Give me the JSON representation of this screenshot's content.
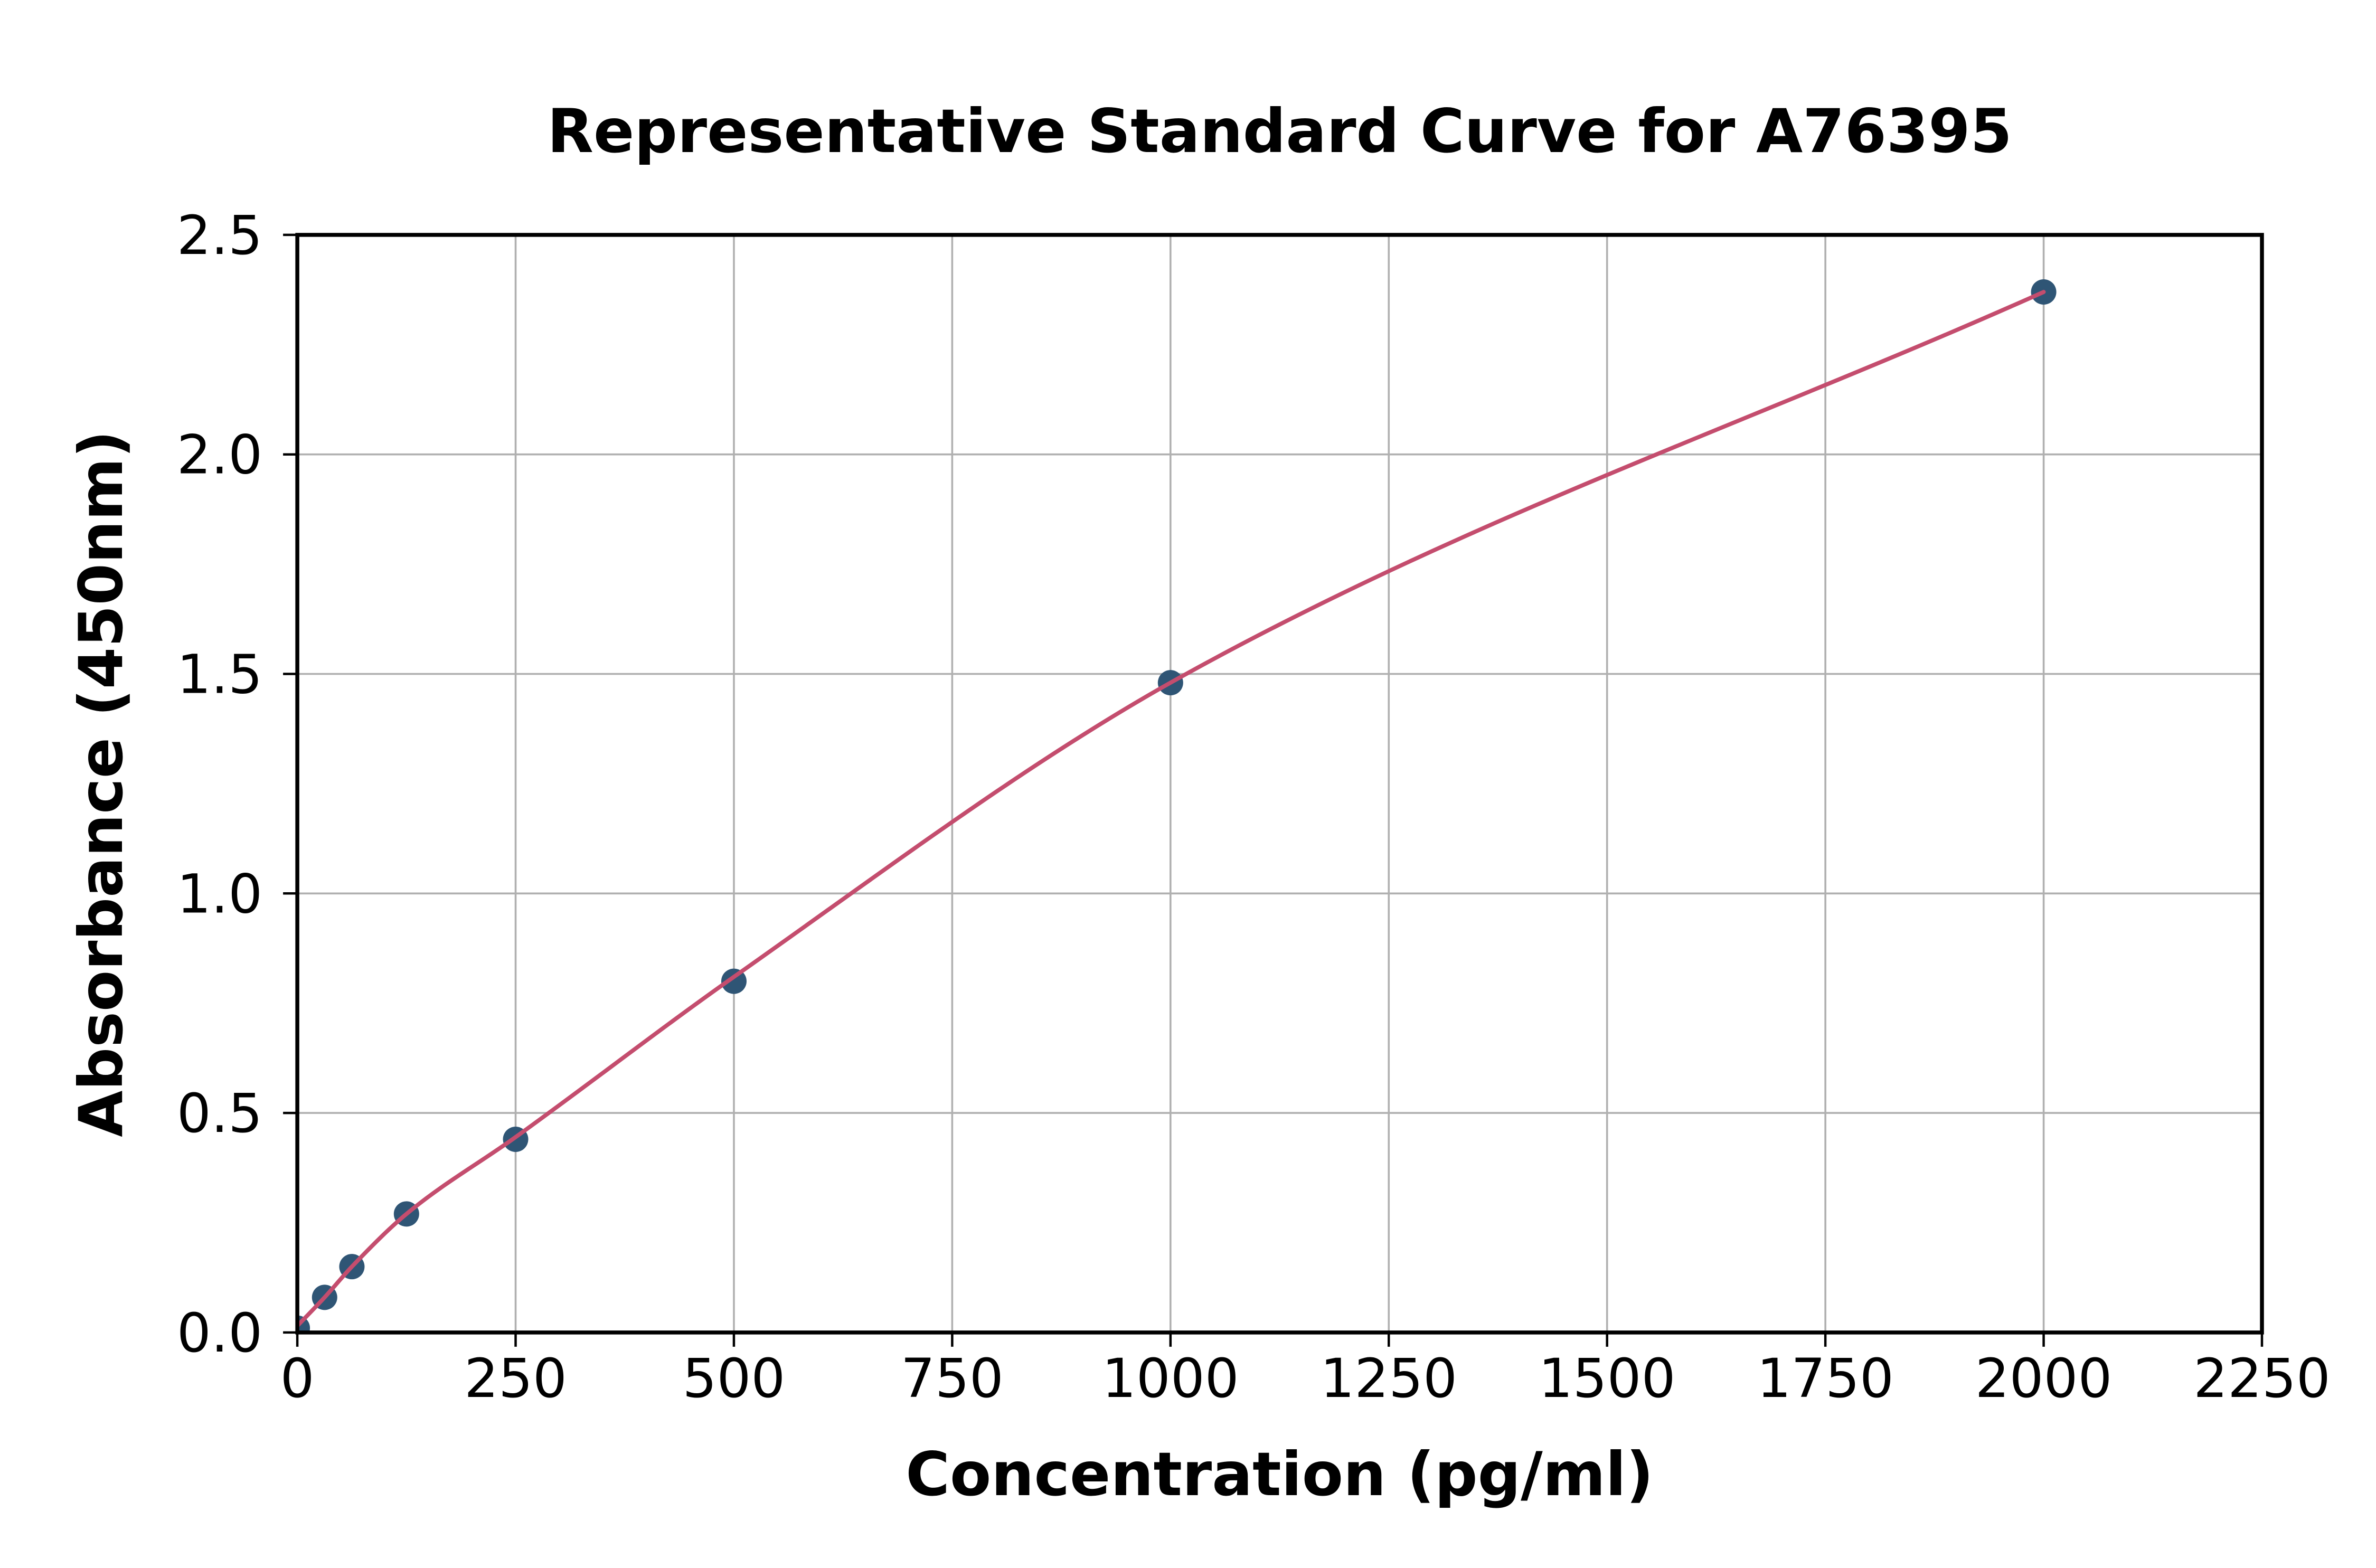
{
  "figure": {
    "background": "#FFFFFF"
  },
  "chart_data": {
    "type": "scatter",
    "title": "Representative Standard Curve for A76395",
    "xlabel": "Concentration (pg/ml)",
    "ylabel": "Absorbance (450nm)",
    "xlim": [
      0,
      2250
    ],
    "ylim": [
      0,
      2.5
    ],
    "xticks": [
      0,
      250,
      500,
      750,
      1000,
      1250,
      1500,
      1750,
      2000,
      2250
    ],
    "xtick_labels": [
      "0",
      "250",
      "500",
      "750",
      "1000",
      "1250",
      "1500",
      "1750",
      "2000",
      "2250"
    ],
    "yticks": [
      0,
      0.5,
      1,
      1.5,
      2,
      2.5
    ],
    "ytick_labels": [
      "0.0",
      "0.5",
      "1.0",
      "1.5",
      "2.0",
      "2.5"
    ],
    "grid": true,
    "legend_visible": false,
    "colors": {
      "point": "#2F5575",
      "fit_line": "#C44D6E",
      "grid": "#B0B0B0",
      "spine": "#000000",
      "text": "#000000"
    },
    "series": [
      {
        "name": "standard-points",
        "type": "scatter",
        "color": "#2F5575",
        "points": [
          {
            "x": 0,
            "y": 0.01
          },
          {
            "x": 31.25,
            "y": 0.08
          },
          {
            "x": 62.5,
            "y": 0.15
          },
          {
            "x": 125,
            "y": 0.27
          },
          {
            "x": 250,
            "y": 0.44
          },
          {
            "x": 500,
            "y": 0.8
          },
          {
            "x": 1000,
            "y": 1.48
          },
          {
            "x": 2000,
            "y": 2.37
          }
        ]
      },
      {
        "name": "fitted-curve",
        "type": "line",
        "color": "#C44D6E",
        "points": [
          {
            "x": 0,
            "y": 0.015
          },
          {
            "x": 31.25,
            "y": 0.08
          },
          {
            "x": 62.5,
            "y": 0.15
          },
          {
            "x": 125,
            "y": 0.27
          },
          {
            "x": 250,
            "y": 0.445
          },
          {
            "x": 500,
            "y": 0.81
          },
          {
            "x": 1000,
            "y": 1.48
          },
          {
            "x": 2000,
            "y": 2.37
          }
        ]
      }
    ]
  }
}
